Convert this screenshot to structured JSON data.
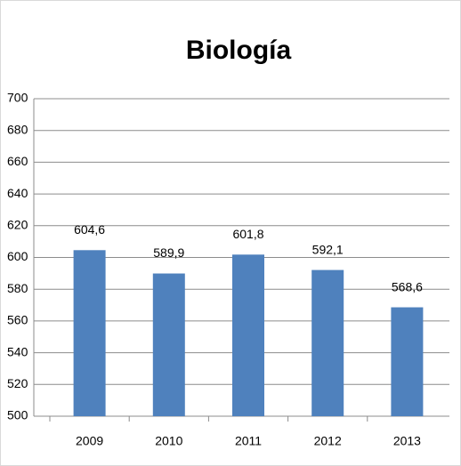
{
  "chart_data": {
    "type": "bar",
    "title": "Biología",
    "categories": [
      "2009",
      "2010",
      "2011",
      "2012",
      "2013"
    ],
    "values": [
      604.6,
      589.9,
      601.8,
      592.1,
      568.6
    ],
    "value_labels": [
      "604,6",
      "589,9",
      "601,8",
      "592,1",
      "568,6"
    ],
    "color": "#4f81bd",
    "ylim": [
      500,
      700
    ],
    "yticks": [
      500,
      520,
      540,
      560,
      580,
      600,
      620,
      640,
      660,
      680,
      700
    ],
    "grid": true
  }
}
